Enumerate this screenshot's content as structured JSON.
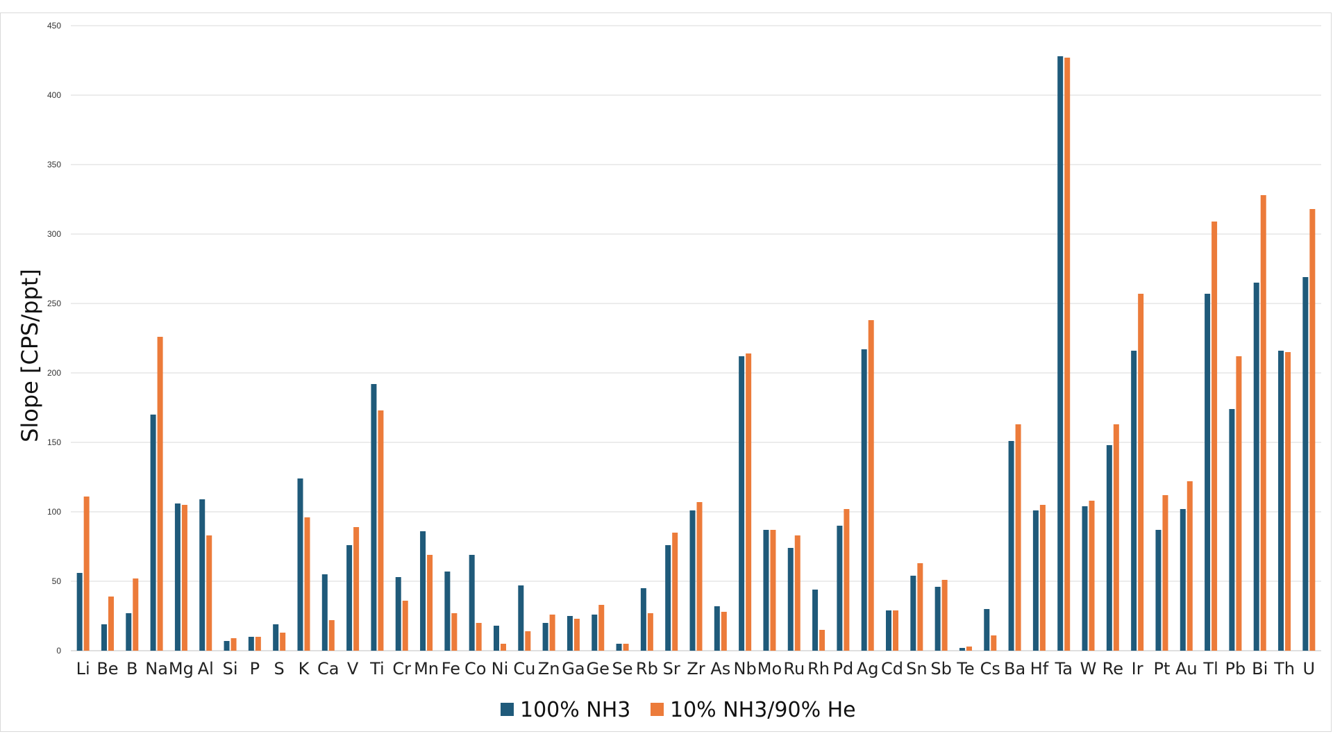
{
  "chart_data": {
    "type": "bar",
    "title": "",
    "xlabel": "",
    "ylabel": "Slope [CPS/ppt]",
    "ylim": [
      0,
      450
    ],
    "yticks": [
      0,
      50,
      100,
      150,
      200,
      250,
      300,
      350,
      400,
      450
    ],
    "grid": true,
    "legend_position": "bottom",
    "categories": [
      "Li",
      "Be",
      "B",
      "Na",
      "Mg",
      "Al",
      "Si",
      "P",
      "S",
      "K",
      "Ca",
      "V",
      "Ti",
      "Cr",
      "Mn",
      "Fe",
      "Co",
      "Ni",
      "Cu",
      "Zn",
      "Ga",
      "Ge",
      "Se",
      "Rb",
      "Sr",
      "Zr",
      "As",
      "Nb",
      "Mo",
      "Ru",
      "Rh",
      "Pd",
      "Ag",
      "Cd",
      "Sn",
      "Sb",
      "Te",
      "Cs",
      "Ba",
      "Hf",
      "Ta",
      "W",
      "Re",
      "Ir",
      "Pt",
      "Au",
      "Tl",
      "Pb",
      "Bi",
      "Th",
      "U"
    ],
    "series": [
      {
        "name": "100% NH3",
        "color": "#1f5a7a",
        "values": [
          56,
          19,
          27,
          170,
          106,
          109,
          7,
          10,
          19,
          124,
          55,
          76,
          192,
          53,
          86,
          57,
          69,
          18,
          47,
          20,
          25,
          26,
          5,
          45,
          76,
          101,
          32,
          212,
          87,
          74,
          44,
          90,
          217,
          29,
          54,
          46,
          2,
          30,
          151,
          101,
          428,
          104,
          148,
          216,
          87,
          102,
          257,
          174,
          265,
          216,
          269
        ]
      },
      {
        "name": "10% NH3/90% He",
        "color": "#ec7b3a",
        "values": [
          111,
          39,
          52,
          226,
          105,
          83,
          9,
          10,
          13,
          96,
          22,
          89,
          173,
          36,
          69,
          27,
          20,
          5,
          14,
          26,
          23,
          33,
          5,
          27,
          85,
          107,
          28,
          214,
          87,
          83,
          15,
          102,
          238,
          29,
          63,
          51,
          3,
          11,
          163,
          105,
          427,
          108,
          163,
          257,
          112,
          122,
          309,
          212,
          328,
          215,
          318
        ]
      }
    ]
  }
}
